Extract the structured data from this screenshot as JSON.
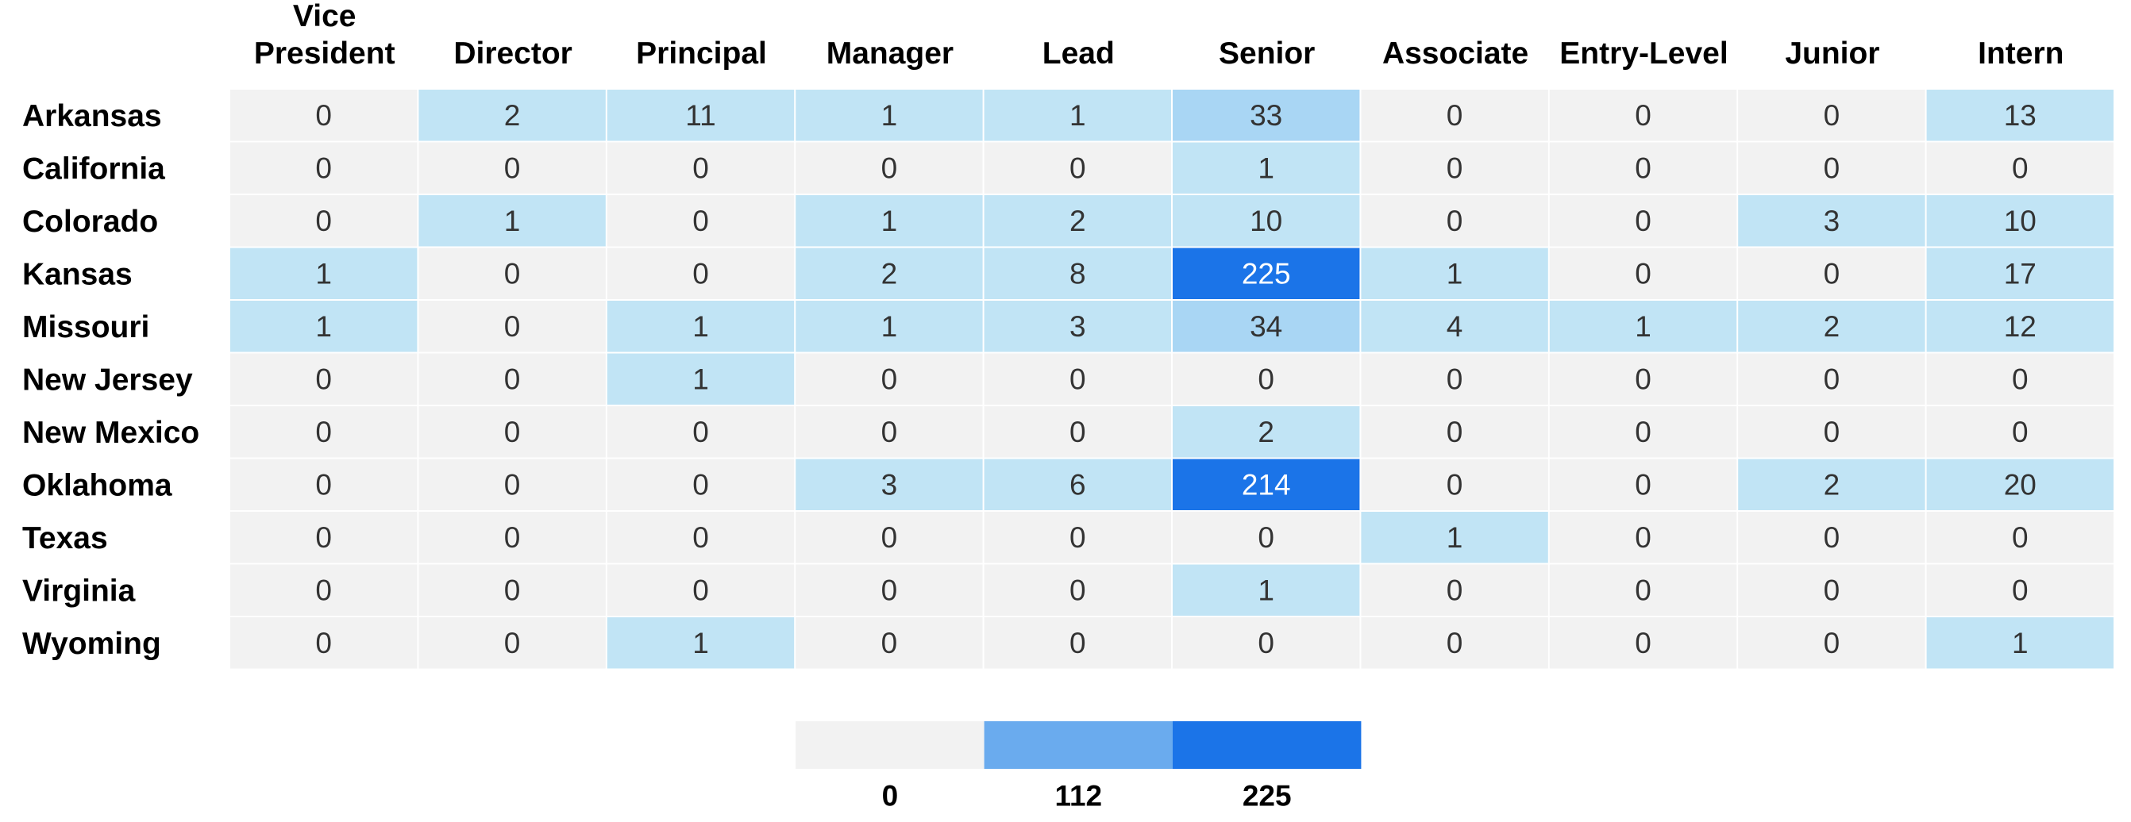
{
  "chart_data": {
    "type": "heatmap",
    "title": "",
    "xlabel": "",
    "ylabel": "",
    "columns": [
      [
        "Vice",
        "President"
      ],
      [
        "Director"
      ],
      [
        "Principal"
      ],
      [
        "Manager"
      ],
      [
        "Lead"
      ],
      [
        "Senior"
      ],
      [
        "Associate"
      ],
      [
        "Entry-Level"
      ],
      [
        "Junior"
      ],
      [
        "Intern"
      ]
    ],
    "rows": [
      "Arkansas",
      "California",
      "Colorado",
      "Kansas",
      "Missouri",
      "New Jersey",
      "New Mexico",
      "Oklahoma",
      "Texas",
      "Virginia",
      "Wyoming"
    ],
    "values": [
      [
        0,
        2,
        11,
        1,
        1,
        33,
        0,
        0,
        0,
        13
      ],
      [
        0,
        0,
        0,
        0,
        0,
        1,
        0,
        0,
        0,
        0
      ],
      [
        0,
        1,
        0,
        1,
        2,
        10,
        0,
        0,
        3,
        10
      ],
      [
        1,
        0,
        0,
        2,
        8,
        225,
        1,
        0,
        0,
        17
      ],
      [
        1,
        0,
        1,
        1,
        3,
        34,
        4,
        1,
        2,
        12
      ],
      [
        0,
        0,
        1,
        0,
        0,
        0,
        0,
        0,
        0,
        0
      ],
      [
        0,
        0,
        0,
        0,
        0,
        2,
        0,
        0,
        0,
        0
      ],
      [
        0,
        0,
        0,
        3,
        6,
        214,
        0,
        0,
        2,
        20
      ],
      [
        0,
        0,
        0,
        0,
        0,
        0,
        1,
        0,
        0,
        0
      ],
      [
        0,
        0,
        0,
        0,
        0,
        1,
        0,
        0,
        0,
        0
      ],
      [
        0,
        0,
        1,
        0,
        0,
        0,
        0,
        0,
        0,
        1
      ]
    ],
    "color_range": [
      0,
      225
    ],
    "legend": {
      "ticks": [
        "0",
        "112",
        "225"
      ],
      "colors": [
        "#f2f2f2",
        "#6aabee",
        "#1b74e8"
      ]
    },
    "colors": {
      "zero": "#f2f2f2",
      "low": "#c1e4f5",
      "mid": "#a9d6f4",
      "high": "#1b74e8",
      "text_dark": "#333333",
      "text_light": "#ffffff"
    }
  }
}
